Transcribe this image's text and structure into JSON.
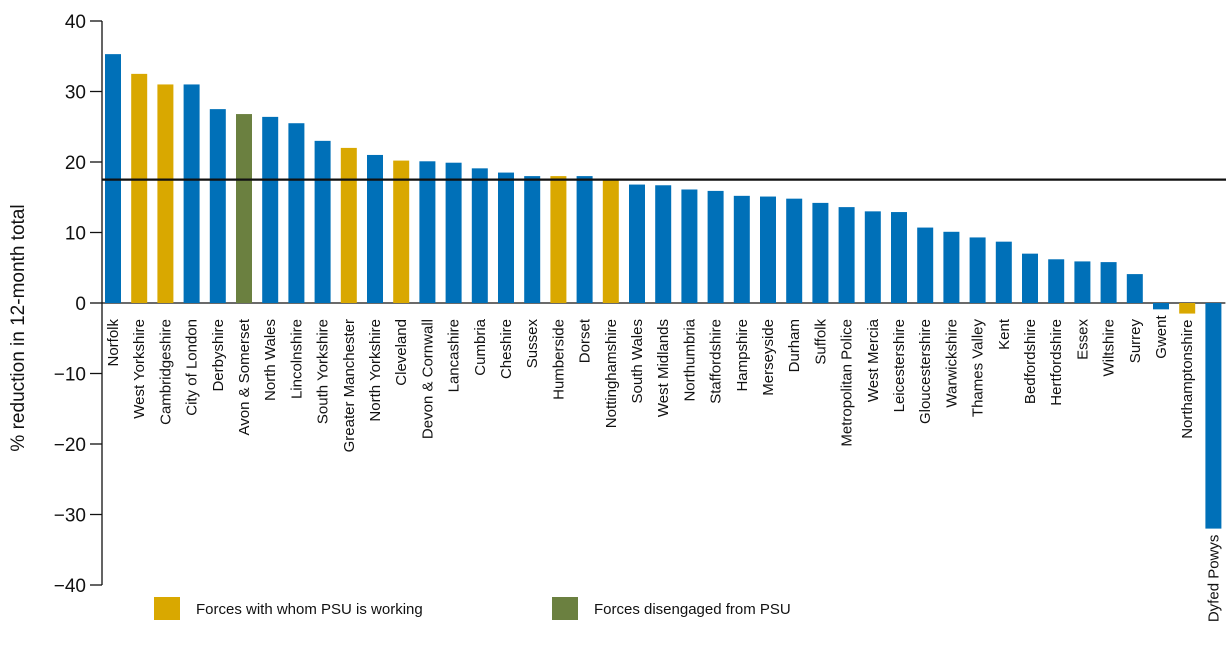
{
  "chart_data": {
    "type": "bar",
    "ylabel": "% reduction in 12-month total",
    "ylim": [
      -40,
      40
    ],
    "yticks": [
      40,
      30,
      20,
      10,
      0,
      -10,
      -20,
      -30,
      -40
    ],
    "ytick_labels": [
      "40",
      "30",
      "20",
      "10",
      "0",
      "−10",
      "−20",
      "−30",
      "−40"
    ],
    "reference_line": 17.5,
    "colors": {
      "default": "#0070b8",
      "working": "#d9a800",
      "disengaged": "#6b8040",
      "reference": "#111111"
    },
    "categories": [
      "Norfolk",
      "West Yorkshire",
      "Cambridgeshire",
      "City of London",
      "Derbyshire",
      "Avon & Somerset",
      "North Wales",
      "Lincolnshire",
      "South Yorkshire",
      "Greater Manchester",
      "North Yorkshire",
      "Cleveland",
      "Devon & Cornwall",
      "Lancashire",
      "Cumbria",
      "Cheshire",
      "Sussex",
      "Humberside",
      "Dorset",
      "Nottinghamshire",
      "South Wales",
      "West Midlands",
      "Northumbria",
      "Staffordshire",
      "Hampshire",
      "Merseyside",
      "Durham",
      "Suffolk",
      "Metropolitan Police",
      "West Mercia",
      "Leicestershire",
      "Gloucestershire",
      "Warwickshire",
      "Thames Valley",
      "Kent",
      "Bedfordshire",
      "Hertfordshire",
      "Essex",
      "Wiltshire",
      "Surrey",
      "Gwent",
      "Northamptonshire",
      "Dyfed Powys"
    ],
    "values": [
      35.3,
      32.5,
      31,
      31,
      27.5,
      26.8,
      26.4,
      25.5,
      23,
      22,
      21,
      20.2,
      20.1,
      19.9,
      19.1,
      18.5,
      18,
      18,
      18,
      17.5,
      16.8,
      16.7,
      16.1,
      15.9,
      15.2,
      15.1,
      14.8,
      14.2,
      13.6,
      13,
      12.9,
      10.7,
      10.1,
      9.3,
      8.7,
      7,
      6.2,
      5.9,
      5.8,
      4.1,
      -0.9,
      -1.5,
      -32
    ],
    "groups": [
      "default",
      "working",
      "working",
      "default",
      "default",
      "disengaged",
      "default",
      "default",
      "default",
      "working",
      "default",
      "working",
      "default",
      "default",
      "default",
      "default",
      "default",
      "working",
      "default",
      "working",
      "default",
      "default",
      "default",
      "default",
      "default",
      "default",
      "default",
      "default",
      "default",
      "default",
      "default",
      "default",
      "default",
      "default",
      "default",
      "default",
      "default",
      "default",
      "default",
      "default",
      "default",
      "working",
      "default"
    ],
    "legend": [
      {
        "label": "Forces with whom PSU is working",
        "group": "working"
      },
      {
        "label": "Forces disengaged from PSU",
        "group": "disengaged"
      }
    ]
  }
}
